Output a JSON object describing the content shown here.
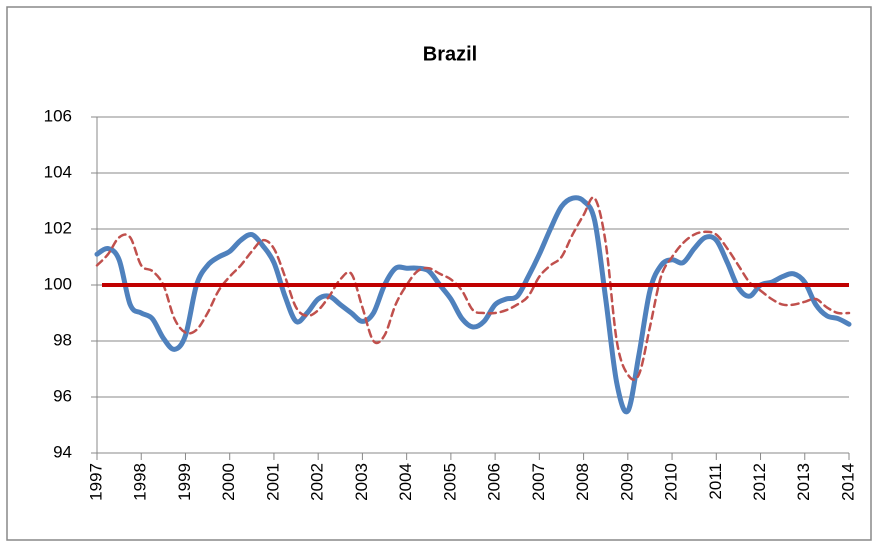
{
  "chart_data": {
    "type": "line",
    "title": "Brazil",
    "x": [
      1997,
      1997.25,
      1997.5,
      1997.75,
      1998,
      1998.25,
      1998.5,
      1998.75,
      1999,
      1999.25,
      1999.5,
      1999.75,
      2000,
      2000.25,
      2000.5,
      2000.75,
      2001,
      2001.25,
      2001.5,
      2001.75,
      2002,
      2002.25,
      2002.5,
      2002.75,
      2003,
      2003.25,
      2003.5,
      2003.75,
      2004,
      2004.25,
      2004.5,
      2004.75,
      2005,
      2005.25,
      2005.5,
      2005.75,
      2006,
      2006.25,
      2006.5,
      2006.75,
      2007,
      2007.25,
      2007.5,
      2007.75,
      2008,
      2008.25,
      2008.5,
      2008.75,
      2009,
      2009.25,
      2009.5,
      2009.75,
      2010,
      2010.25,
      2010.5,
      2010.75,
      2011,
      2011.25,
      2011.5,
      2011.75,
      2012,
      2012.25,
      2012.5,
      2012.75,
      2013,
      2013.25,
      2013.5,
      2013.75,
      2014
    ],
    "series": [
      {
        "color": "#4f81bd",
        "style": "solid",
        "values": [
          101.1,
          101.3,
          100.9,
          99.3,
          99.0,
          98.8,
          98.1,
          97.7,
          98.2,
          100.0,
          100.7,
          101.0,
          101.2,
          101.6,
          101.8,
          101.4,
          100.8,
          99.6,
          98.7,
          99.0,
          99.5,
          99.6,
          99.3,
          99.0,
          98.7,
          99.0,
          100.0,
          100.6,
          100.6,
          100.6,
          100.5,
          100.0,
          99.5,
          98.8,
          98.5,
          98.7,
          99.3,
          99.5,
          99.6,
          100.3,
          101.1,
          102.0,
          102.8,
          103.1,
          103.0,
          102.3,
          99.5,
          96.5,
          95.5,
          97.5,
          99.8,
          100.7,
          100.9,
          100.8,
          101.3,
          101.7,
          101.6,
          100.8,
          99.9,
          99.6,
          100.0,
          100.1,
          100.3,
          100.4,
          100.1,
          99.3,
          98.9,
          98.8,
          98.6
        ]
      },
      {
        "color": "#c0504d",
        "style": "dashed",
        "values": [
          100.7,
          101.1,
          101.7,
          101.7,
          100.7,
          100.5,
          100.0,
          98.8,
          98.3,
          98.4,
          99.0,
          99.8,
          100.3,
          100.7,
          101.2,
          101.6,
          101.3,
          100.3,
          99.2,
          98.9,
          99.1,
          99.6,
          100.2,
          100.4,
          99.2,
          98.0,
          98.2,
          99.3,
          100.0,
          100.5,
          100.6,
          100.4,
          100.2,
          99.8,
          99.1,
          99.0,
          99.0,
          99.1,
          99.3,
          99.6,
          100.3,
          100.7,
          101.0,
          101.8,
          102.5,
          103.1,
          101.5,
          98.0,
          96.8,
          96.8,
          98.5,
          100.3,
          101.0,
          101.5,
          101.8,
          101.9,
          101.8,
          101.3,
          100.7,
          100.1,
          99.8,
          99.5,
          99.3,
          99.3,
          99.4,
          99.5,
          99.2,
          99.0,
          99.0
        ]
      }
    ],
    "reference_line": {
      "value": 100,
      "color": "#c00000"
    },
    "xlim": [
      1997,
      2014
    ],
    "xticks": [
      1997,
      1998,
      1999,
      2000,
      2001,
      2002,
      2003,
      2004,
      2005,
      2006,
      2007,
      2008,
      2009,
      2010,
      2011,
      2012,
      2013,
      2014
    ],
    "ylim": [
      94,
      106
    ],
    "yticks": [
      94,
      96,
      98,
      100,
      102,
      104,
      106
    ],
    "grid": true
  }
}
